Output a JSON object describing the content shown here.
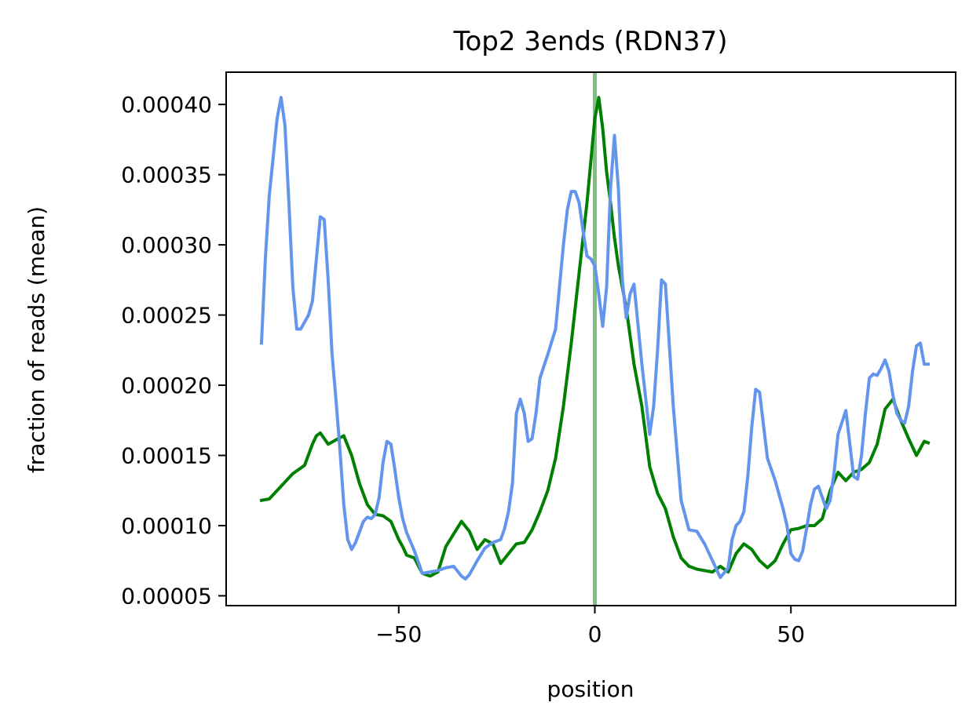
{
  "chart_data": {
    "type": "line",
    "title": "Top2 3ends (RDN37)",
    "xlabel": "position",
    "ylabel": "fraction of reads (mean)",
    "xlim": [
      -94,
      92
    ],
    "ylim": [
      4.3e-05,
      0.000423
    ],
    "x_ticks": [
      -50,
      0,
      50
    ],
    "x_tick_labels": [
      "−50",
      "0",
      "50"
    ],
    "y_ticks": [
      5e-05,
      0.0001,
      0.00015,
      0.0002,
      0.00025,
      0.0003,
      0.00035,
      0.0004
    ],
    "y_tick_labels": [
      "0.00005",
      "0.00010",
      "0.00015",
      "0.00020",
      "0.00025",
      "0.00030",
      "0.00035",
      "0.00040"
    ],
    "grid": false,
    "vline": {
      "x": 0,
      "color": "#7fbf7f"
    },
    "series": [
      {
        "color": "#008000",
        "x": [
          -85,
          -83,
          -80,
          -77,
          -74,
          -72,
          -71,
          -70,
          -68,
          -66,
          -64,
          -62,
          -60,
          -58,
          -56,
          -54,
          -52,
          -50,
          -49,
          -48,
          -46,
          -44,
          -42,
          -40,
          -38,
          -36,
          -34,
          -32,
          -30,
          -28,
          -26,
          -24,
          -22,
          -20,
          -18,
          -16,
          -14,
          -12,
          -10,
          -8,
          -6,
          -4,
          -2,
          -1,
          0,
          1,
          2,
          3,
          4,
          5,
          6,
          8,
          10,
          12,
          14,
          16,
          18,
          20,
          22,
          24,
          26,
          28,
          30,
          32,
          34,
          36,
          38,
          40,
          42,
          44,
          46,
          48,
          50,
          52,
          54,
          56,
          58,
          60,
          62,
          64,
          66,
          68,
          70,
          72,
          74,
          76,
          78,
          80,
          82,
          84,
          85
        ],
        "values": [
          0.000118,
          0.000119,
          0.000128,
          0.000137,
          0.000143,
          0.000158,
          0.000164,
          0.000166,
          0.000158,
          0.000161,
          0.000164,
          0.00015,
          0.00013,
          0.000115,
          0.000108,
          0.000107,
          0.000103,
          9e-05,
          8.5e-05,
          7.9e-05,
          7.7e-05,
          6.6e-05,
          6.4e-05,
          6.7e-05,
          8.5e-05,
          9.4e-05,
          0.000103,
          9.6e-05,
          8.3e-05,
          9e-05,
          8.7e-05,
          7.3e-05,
          8e-05,
          8.7e-05,
          8.8e-05,
          9.7e-05,
          0.00011,
          0.000125,
          0.000148,
          0.000185,
          0.00023,
          0.00028,
          0.00033,
          0.00036,
          0.00039,
          0.000405,
          0.000383,
          0.000352,
          0.00033,
          0.000305,
          0.000285,
          0.000255,
          0.000215,
          0.000185,
          0.000142,
          0.000123,
          0.000112,
          9.2e-05,
          7.7e-05,
          7.1e-05,
          6.9e-05,
          6.8e-05,
          6.7e-05,
          7.1e-05,
          6.7e-05,
          8e-05,
          8.7e-05,
          8.3e-05,
          7.5e-05,
          7e-05,
          7.5e-05,
          8.7e-05,
          9.7e-05,
          9.8e-05,
          0.0001,
          0.0001,
          0.000105,
          0.000125,
          0.000138,
          0.000132,
          0.000138,
          0.00014,
          0.000145,
          0.000158,
          0.000183,
          0.00019,
          0.000175,
          0.000162,
          0.00015,
          0.00016,
          0.000159
        ]
      },
      {
        "color": "#6495ed",
        "x": [
          -85,
          -84,
          -83,
          -81,
          -80,
          -79,
          -78,
          -77,
          -76,
          -75,
          -73,
          -72,
          -70,
          -69,
          -68,
          -67,
          -66,
          -65,
          -64,
          -63,
          -62,
          -61,
          -59,
          -58,
          -57,
          -56,
          -55,
          -54,
          -53,
          -52,
          -51,
          -50,
          -49,
          -48,
          -46,
          -44,
          -42,
          -40,
          -38,
          -36,
          -34,
          -33,
          -32,
          -30,
          -28,
          -26,
          -24,
          -23,
          -22,
          -21,
          -20,
          -19,
          -18,
          -17,
          -16,
          -15,
          -14,
          -12,
          -10,
          -8,
          -7,
          -6,
          -5,
          -4,
          -3,
          -2,
          -1,
          0,
          1,
          2,
          3,
          4,
          5,
          6,
          7,
          8,
          9,
          10,
          12,
          14,
          15,
          16,
          17,
          18,
          20,
          22,
          24,
          26,
          28,
          30,
          32,
          34,
          35,
          36,
          37,
          38,
          39,
          40,
          41,
          42,
          44,
          46,
          48,
          49,
          50,
          51,
          52,
          53,
          54,
          55,
          56,
          57,
          58,
          59,
          60,
          61,
          62,
          64,
          66,
          67,
          68,
          69,
          70,
          71,
          72,
          73,
          74,
          75,
          76,
          77,
          78,
          79,
          80,
          81,
          82,
          83,
          84,
          85
        ],
        "values": [
          0.00023,
          0.00029,
          0.000335,
          0.00039,
          0.000405,
          0.000385,
          0.00033,
          0.00027,
          0.00024,
          0.00024,
          0.00025,
          0.00026,
          0.00032,
          0.000318,
          0.000275,
          0.000222,
          0.00019,
          0.000155,
          0.000115,
          9e-05,
          8.3e-05,
          8.8e-05,
          0.000103,
          0.000106,
          0.000105,
          0.000108,
          0.00012,
          0.000145,
          0.00016,
          0.000158,
          0.00014,
          0.00012,
          0.000105,
          9.5e-05,
          8.2e-05,
          6.6e-05,
          6.7e-05,
          6.8e-05,
          7e-05,
          7.1e-05,
          6.4e-05,
          6.2e-05,
          6.5e-05,
          7.5e-05,
          8.4e-05,
          8.8e-05,
          9e-05,
          9.8e-05,
          0.00011,
          0.00013,
          0.00018,
          0.00019,
          0.00018,
          0.00016,
          0.000162,
          0.00018,
          0.000205,
          0.000222,
          0.00024,
          0.0003,
          0.000325,
          0.000338,
          0.000338,
          0.00033,
          0.00031,
          0.000292,
          0.00029,
          0.000285,
          0.000265,
          0.000242,
          0.00027,
          0.00034,
          0.000378,
          0.00034,
          0.000275,
          0.000248,
          0.000265,
          0.000272,
          0.000215,
          0.000165,
          0.000185,
          0.000225,
          0.000275,
          0.000272,
          0.000185,
          0.000118,
          9.7e-05,
          9.6e-05,
          8.7e-05,
          7.5e-05,
          6.3e-05,
          7e-05,
          9e-05,
          0.0001,
          0.000103,
          0.00011,
          0.000135,
          0.00017,
          0.000197,
          0.000195,
          0.000148,
          0.000132,
          0.000112,
          0.0001,
          8e-05,
          7.6e-05,
          7.5e-05,
          8.2e-05,
          9.8e-05,
          0.000115,
          0.000126,
          0.000128,
          0.00012,
          0.000112,
          0.000118,
          0.000138,
          0.000165,
          0.000182,
          0.000135,
          0.000133,
          0.00015,
          0.00018,
          0.000205,
          0.000208,
          0.000207,
          0.000212,
          0.000218,
          0.00021,
          0.000193,
          0.00018,
          0.000175,
          0.000173,
          0.000185,
          0.00021,
          0.000228,
          0.00023,
          0.000215,
          0.000215
        ]
      }
    ]
  }
}
